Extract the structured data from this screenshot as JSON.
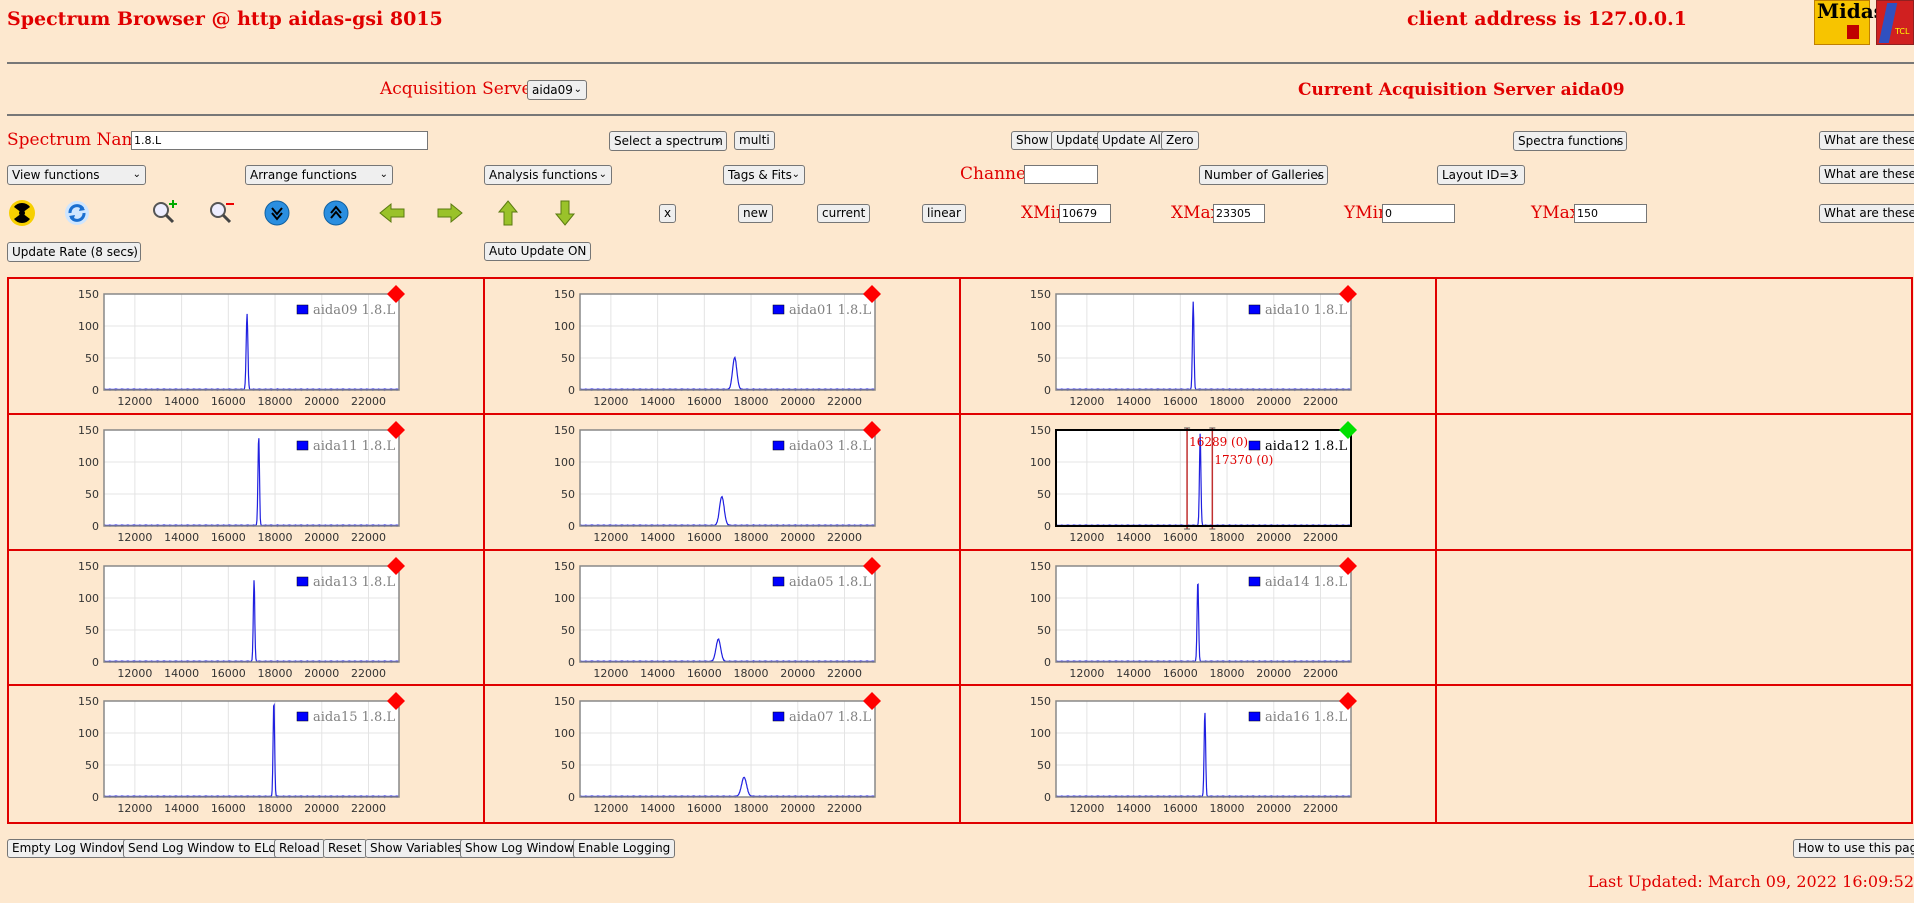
{
  "header": {
    "title": "Spectrum Browser @ http aidas-gsi 8015",
    "client": "client address is 127.0.0.1",
    "logo_text": "Midas",
    "logo2_text": "TCL"
  },
  "servers": {
    "label": "Acquisition Servers",
    "selected": "aida09",
    "current": "Current Acquisition Server aida09"
  },
  "row1": {
    "spectrum_label": "Spectrum Name:",
    "spectrum_value": "1.8.L",
    "select_spectrum": "Select a spectrum",
    "multi": "multi",
    "show": "Show",
    "update": "Update",
    "update_all": "Update All",
    "zero": "Zero",
    "spectra_functions": "Spectra functions",
    "what": "What are these?"
  },
  "row2": {
    "view": "View functions",
    "arrange": "Arrange functions",
    "analysis": "Analysis functions",
    "tags": "Tags & Fits",
    "channel_label": "Channel:",
    "channel_value": "",
    "galleries": "Number of Galleries",
    "layout": "Layout ID=3",
    "what": "What are these?"
  },
  "row3": {
    "x": "x",
    "new": "new",
    "current": "current",
    "linear": "linear",
    "xmin_label": "XMin",
    "xmin": "10679",
    "xmax_label": "XMax",
    "xmax": "23305",
    "ymin_label": "YMin",
    "ymin": "0",
    "ymax_label": "YMax",
    "ymax": "150",
    "what": "What are these?"
  },
  "row4": {
    "update_rate": "Update Rate (8 secs)",
    "auto_update": "Auto Update ON"
  },
  "colors": {
    "accent": "#e00000",
    "trace": "#2020e0",
    "status_inactive": "#ff0000",
    "status_active": "#00e000"
  },
  "chart_data": [
    {
      "type": "line",
      "legend": "aida09 1.8.L",
      "peak_x": 16800,
      "peak_y": 118,
      "peak_width": 80,
      "selected": false,
      "xticks": [
        "12000",
        "14000",
        "16000",
        "18000",
        "20000",
        "22000"
      ],
      "yticks": [
        "0",
        "50",
        "100",
        "150"
      ],
      "xlim": [
        10679,
        23305
      ],
      "ylim": [
        0,
        150
      ]
    },
    {
      "type": "line",
      "legend": "aida01 1.8.L",
      "peak_x": 17300,
      "peak_y": 50,
      "peak_width": 200,
      "selected": false,
      "xticks": [
        "12000",
        "14000",
        "16000",
        "18000",
        "20000",
        "22000"
      ],
      "yticks": [
        "0",
        "50",
        "100",
        "150"
      ],
      "xlim": [
        10679,
        23305
      ],
      "ylim": [
        0,
        150
      ]
    },
    {
      "type": "line",
      "legend": "aida10 1.8.L",
      "peak_x": 16550,
      "peak_y": 138,
      "peak_width": 70,
      "selected": false,
      "xticks": [
        "12000",
        "14000",
        "16000",
        "18000",
        "20000",
        "22000"
      ],
      "yticks": [
        "0",
        "50",
        "100",
        "150"
      ],
      "xlim": [
        10679,
        23305
      ],
      "ylim": [
        0,
        150
      ]
    },
    {
      "type": "line",
      "legend": "aida11 1.8.L",
      "peak_x": 17300,
      "peak_y": 140,
      "peak_width": 70,
      "selected": false,
      "xticks": [
        "12000",
        "14000",
        "16000",
        "18000",
        "20000",
        "22000"
      ],
      "yticks": [
        "0",
        "50",
        "100",
        "150"
      ],
      "xlim": [
        10679,
        23305
      ],
      "ylim": [
        0,
        150
      ]
    },
    {
      "type": "line",
      "legend": "aida03 1.8.L",
      "peak_x": 16750,
      "peak_y": 45,
      "peak_width": 220,
      "selected": false,
      "xticks": [
        "12000",
        "14000",
        "16000",
        "18000",
        "20000",
        "22000"
      ],
      "yticks": [
        "0",
        "50",
        "100",
        "150"
      ],
      "xlim": [
        10679,
        23305
      ],
      "ylim": [
        0,
        150
      ]
    },
    {
      "type": "line",
      "legend": "aida12 1.8.L",
      "peak_x": 16850,
      "peak_y": 145,
      "peak_width": 70,
      "selected": true,
      "markers": [
        {
          "x": 16289,
          "label": "16289 (0)"
        },
        {
          "x": 17370,
          "label": "17370 (0)"
        }
      ],
      "xticks": [
        "12000",
        "14000",
        "16000",
        "18000",
        "20000",
        "22000"
      ],
      "yticks": [
        "0",
        "50",
        "100",
        "150"
      ],
      "xlim": [
        10679,
        23305
      ],
      "ylim": [
        0,
        150
      ]
    },
    {
      "type": "line",
      "legend": "aida13 1.8.L",
      "peak_x": 17100,
      "peak_y": 128,
      "peak_width": 70,
      "selected": false,
      "xticks": [
        "12000",
        "14000",
        "16000",
        "18000",
        "20000",
        "22000"
      ],
      "yticks": [
        "0",
        "50",
        "100",
        "150"
      ],
      "xlim": [
        10679,
        23305
      ],
      "ylim": [
        0,
        150
      ]
    },
    {
      "type": "line",
      "legend": "aida05 1.8.L",
      "peak_x": 16600,
      "peak_y": 35,
      "peak_width": 220,
      "selected": false,
      "xticks": [
        "12000",
        "14000",
        "16000",
        "18000",
        "20000",
        "22000"
      ],
      "yticks": [
        "0",
        "50",
        "100",
        "150"
      ],
      "xlim": [
        10679,
        23305
      ],
      "ylim": [
        0,
        150
      ]
    },
    {
      "type": "line",
      "legend": "aida14 1.8.L",
      "peak_x": 16750,
      "peak_y": 127,
      "peak_width": 70,
      "selected": false,
      "xticks": [
        "12000",
        "14000",
        "16000",
        "18000",
        "20000",
        "22000"
      ],
      "yticks": [
        "0",
        "50",
        "100",
        "150"
      ],
      "xlim": [
        10679,
        23305
      ],
      "ylim": [
        0,
        150
      ]
    },
    {
      "type": "line",
      "legend": "aida15 1.8.L",
      "peak_x": 17950,
      "peak_y": 150,
      "peak_width": 70,
      "selected": false,
      "xticks": [
        "12000",
        "14000",
        "16000",
        "18000",
        "20000",
        "22000"
      ],
      "yticks": [
        "0",
        "50",
        "100",
        "150"
      ],
      "xlim": [
        10679,
        23305
      ],
      "ylim": [
        0,
        150
      ]
    },
    {
      "type": "line",
      "legend": "aida07 1.8.L",
      "peak_x": 17700,
      "peak_y": 30,
      "peak_width": 240,
      "selected": false,
      "xticks": [
        "12000",
        "14000",
        "16000",
        "18000",
        "20000",
        "22000"
      ],
      "yticks": [
        "0",
        "50",
        "100",
        "150"
      ],
      "xlim": [
        10679,
        23305
      ],
      "ylim": [
        0,
        150
      ]
    },
    {
      "type": "line",
      "legend": "aida16 1.8.L",
      "peak_x": 17050,
      "peak_y": 133,
      "peak_width": 70,
      "selected": false,
      "xticks": [
        "12000",
        "14000",
        "16000",
        "18000",
        "20000",
        "22000"
      ],
      "yticks": [
        "0",
        "50",
        "100",
        "150"
      ],
      "xlim": [
        10679,
        23305
      ],
      "ylim": [
        0,
        150
      ]
    }
  ],
  "footer": {
    "empty_log": "Empty Log Window",
    "send_log": "Send Log Window to ELog",
    "reload": "Reload",
    "reset": "Reset",
    "show_vars": "Show Variables",
    "show_log": "Show Log Window",
    "enable_logging": "Enable Logging",
    "howto": "How to use this page",
    "last_updated": "Last Updated: March 09, 2022 16:09:52"
  }
}
